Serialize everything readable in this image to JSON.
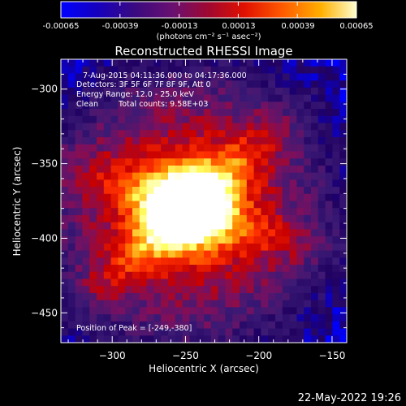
{
  "colorbar": {
    "ticks": [
      "-0.00065",
      "-0.00039",
      "-0.00013",
      "0.00013",
      "0.00039",
      "0.00065"
    ],
    "tick_values": [
      -0.00065,
      -0.00039,
      -0.00013,
      0.00013,
      0.00039,
      0.00065
    ],
    "range": [
      -0.00065,
      0.00065
    ],
    "label": "(photons cm⁻² s⁻¹ asec⁻²)"
  },
  "annotations": {
    "time_range": "7-Aug-2015 04:11:36.000 to 04:17:36.000",
    "detectors": "Detectors: 3F 5F 6F 7F 8F 9F, Att 0",
    "energy": "Energy Range: 12.0 - 25.0 keV",
    "clean": "Clean",
    "counts": "Total counts: 9.58E+03",
    "peak": "Position of Peak = [-249,-380]"
  },
  "footer": {
    "date": "22-May-2022 19:26"
  },
  "chart_data": {
    "type": "heatmap",
    "title": "Reconstructed RHESSI Image",
    "xlabel": "Heliocentric X (arcsec)",
    "ylabel": "Heliocentric Y (arcsec)",
    "xlim": [
      -335,
      -140
    ],
    "ylim": [
      -470,
      -280
    ],
    "x_ticks": [
      -300,
      -250,
      -200,
      -150
    ],
    "y_ticks": [
      -300,
      -350,
      -400,
      -450
    ],
    "x_tick_labels": [
      "−300",
      "−250",
      "−200",
      "−150"
    ],
    "y_tick_labels": [
      "−300",
      "−350",
      "−400",
      "−450"
    ],
    "colormap": [
      "#0000ff",
      "#200060",
      "#3a1a75",
      "#7a1060",
      "#c80000",
      "#ff3000",
      "#ff9000",
      "#ffff60",
      "#ffffff"
    ],
    "peak": {
      "x": -249,
      "y": -380
    },
    "grid": false
  }
}
